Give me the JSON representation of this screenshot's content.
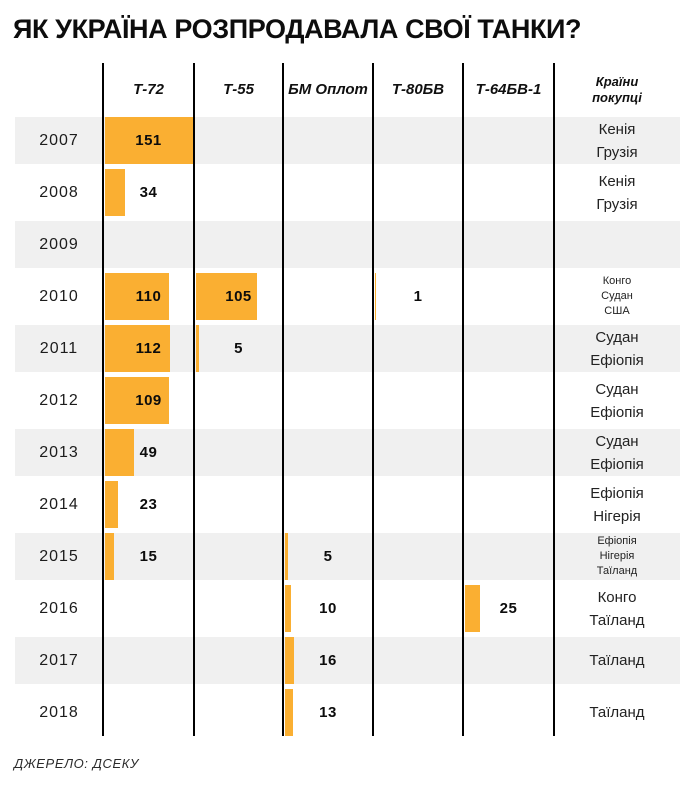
{
  "page": {
    "title": "ЯК УКРАЇНА РОЗПРОДАВАЛА СВОЇ ТАНКИ?",
    "source_note": "ДЖЕРЕЛО: ДСЕКУ"
  },
  "chart_data": {
    "type": "bar",
    "orientation": "horizontal",
    "title": "ЯК УКРАЇНА РОЗПРОДАВАЛА СВОЇ ТАНКИ?",
    "source": "ДЖЕРЕЛО: ДСЕКУ",
    "legend_position": "none",
    "grid": "vertical-black-column-separators",
    "value_axis_max_reference": 151,
    "categories": [
      "Т-72",
      "Т-55",
      "БМ Оплот",
      "Т-80БВ",
      "Т-64БВ-1"
    ],
    "buyers_header_lines": [
      "Країни",
      "покупці"
    ],
    "rows": [
      {
        "year": "2007",
        "values": [
          151,
          null,
          null,
          null,
          null
        ],
        "countries": [
          "Кенія",
          "Грузія"
        ]
      },
      {
        "year": "2008",
        "values": [
          34,
          null,
          null,
          null,
          null
        ],
        "countries": [
          "Кенія",
          "Грузія"
        ]
      },
      {
        "year": "2009",
        "values": [
          null,
          null,
          null,
          null,
          null
        ],
        "countries": []
      },
      {
        "year": "2010",
        "values": [
          110,
          105,
          null,
          1,
          null
        ],
        "countries": [
          "Конго",
          "Судан",
          "США"
        ]
      },
      {
        "year": "2011",
        "values": [
          112,
          5,
          null,
          null,
          null
        ],
        "countries": [
          "Судан",
          "Ефіопія"
        ]
      },
      {
        "year": "2012",
        "values": [
          109,
          null,
          null,
          null,
          null
        ],
        "countries": [
          "Судан",
          "Ефіопія"
        ]
      },
      {
        "year": "2013",
        "values": [
          49,
          null,
          null,
          null,
          null
        ],
        "countries": [
          "Судан",
          "Ефіопія"
        ]
      },
      {
        "year": "2014",
        "values": [
          23,
          null,
          null,
          null,
          null
        ],
        "countries": [
          "Ефіопія",
          "Нігерія"
        ]
      },
      {
        "year": "2015",
        "values": [
          15,
          null,
          5,
          null,
          null
        ],
        "countries": [
          "Ефіопія",
          "Нігерія",
          "Таїланд"
        ]
      },
      {
        "year": "2016",
        "values": [
          null,
          null,
          10,
          null,
          25
        ],
        "countries": [
          "Конго",
          "Таїланд"
        ]
      },
      {
        "year": "2017",
        "values": [
          null,
          null,
          16,
          null,
          null
        ],
        "countries": [
          "Таїланд"
        ]
      },
      {
        "year": "2018",
        "values": [
          null,
          null,
          13,
          null,
          null
        ],
        "countries": [
          "Таїланд"
        ]
      }
    ],
    "colors": {
      "bar": "#FAAF32",
      "row_shade": "#F0F0F0",
      "separator_line": "#000000",
      "title_text": "#0D0D0D"
    }
  }
}
